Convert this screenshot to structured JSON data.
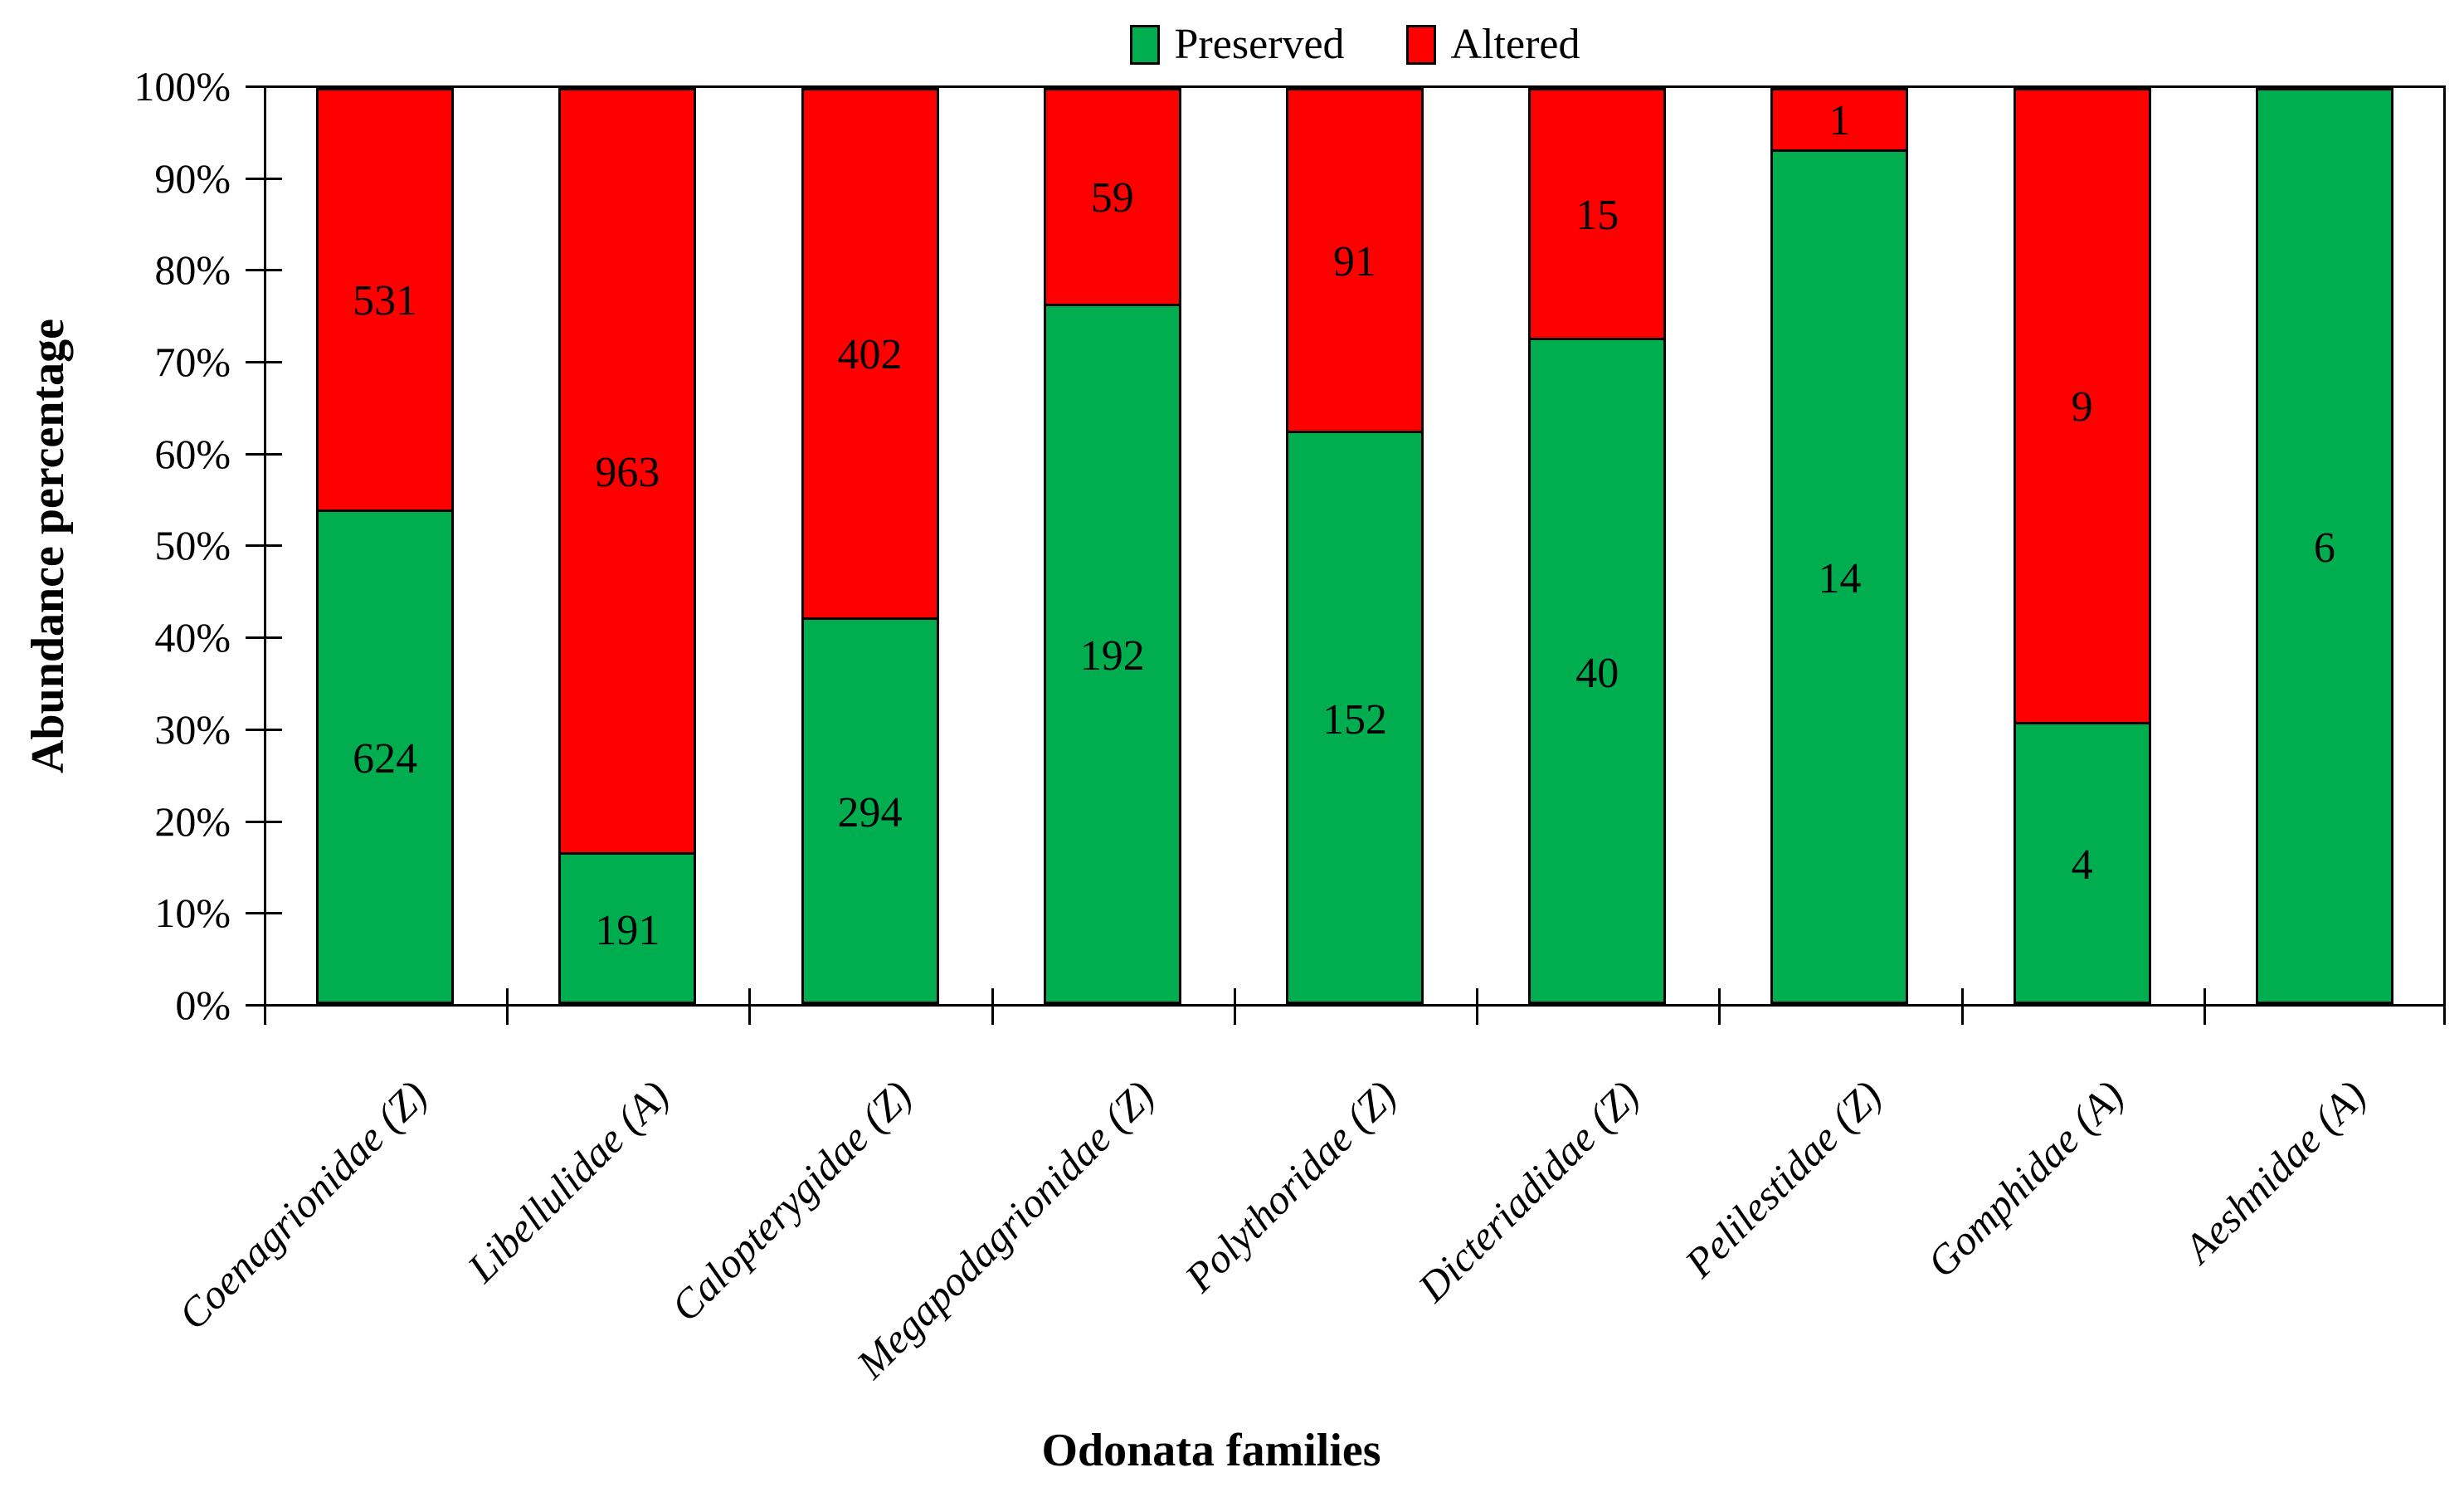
{
  "legend": {
    "items": [
      {
        "label": "Preserved",
        "color": "#00AE50"
      },
      {
        "label": "Altered",
        "color": "#FF0000"
      }
    ]
  },
  "y_axis": {
    "title": "Abundance percentage",
    "tick_labels": [
      "0%",
      "10%",
      "20%",
      "30%",
      "40%",
      "50%",
      "60%",
      "70%",
      "80%",
      "90%",
      "100%"
    ]
  },
  "x_axis": {
    "title": "Odonata families"
  },
  "chart_data": {
    "type": "bar",
    "subtype": "100pct-stacked-column",
    "title": "",
    "xlabel": "Odonata families",
    "ylabel": "Abundance percentage",
    "ylim": [
      0,
      100
    ],
    "ytick_step_percent": 10,
    "grid": false,
    "legend_position": "top-center",
    "bar_outline_color": "#000000",
    "categories": [
      "Coenagrionidae (Z)",
      "Libellulidae (A)",
      "Calopterygidae (Z)",
      "Megapodagrionidae (Z)",
      "Polythoridae (Z)",
      "Dicteriadidae (Z)",
      "Pelilestidae (Z)",
      "Gomphidae (A)",
      "Aeshnidae (A)"
    ],
    "series": [
      {
        "name": "Preserved",
        "color": "#00AE50",
        "values": [
          624,
          191,
          294,
          192,
          152,
          40,
          14,
          4,
          6
        ]
      },
      {
        "name": "Altered",
        "color": "#FF0000",
        "values": [
          531,
          963,
          402,
          59,
          91,
          15,
          1,
          9,
          0
        ]
      }
    ]
  }
}
